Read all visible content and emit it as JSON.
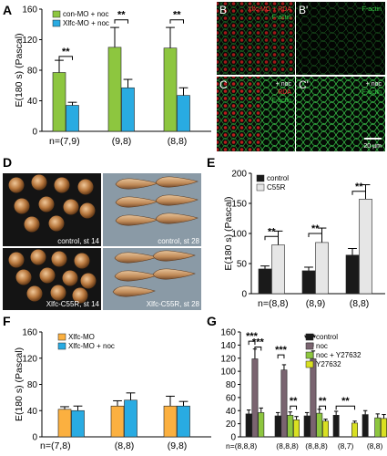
{
  "panel_letters": {
    "A": "A",
    "B": "B",
    "B2": "B'",
    "C": "C",
    "C2": "C'",
    "D": "D",
    "E": "E",
    "F": "F",
    "G": "G"
  },
  "micrographs": {
    "B": [
      "Xlfc-MO + RDA",
      "F-actin"
    ],
    "B2": [
      "F-actin"
    ],
    "C": [
      "+ noc",
      "RDA",
      "F-actin"
    ],
    "C2": [
      "+ noc",
      "F-actin"
    ],
    "scale_bar": "20 µm"
  },
  "photos": {
    "tl": "control, st 14",
    "tr": "control, st 28",
    "bl": "Xlfc-C55R, st 14",
    "br": "Xlfc-C55R, st 28"
  },
  "colors": {
    "green": "#8dc63f",
    "blue": "#29abe2",
    "black": "#1a1a1a",
    "light_gray": "#e6e6e6",
    "orange": "#fbb040",
    "plum": "#7a6470",
    "lime": "#d9e021"
  },
  "chart_data": [
    {
      "id": "A",
      "type": "bar",
      "ylabel": "E(180 s) (Pascal)",
      "ylim": [
        0,
        160
      ],
      "yticks": [
        0,
        40,
        80,
        120,
        160
      ],
      "categories": [
        "n=(7,9)",
        "(9,8)",
        "(8,8)"
      ],
      "legend_position": "top-left",
      "series": [
        {
          "name": "con-MO + noc",
          "color": "green",
          "values": [
            77,
            110,
            109
          ],
          "errors": [
            16,
            26,
            27
          ]
        },
        {
          "name": "Xlfc-MO + noc",
          "color": "blue",
          "values": [
            34,
            57,
            47
          ],
          "errors": [
            4,
            11,
            10
          ]
        }
      ],
      "significance": [
        {
          "group": 0,
          "pair": [
            0,
            1
          ],
          "label": "**",
          "y": 98
        },
        {
          "group": 1,
          "pair": [
            0,
            1
          ],
          "label": "**",
          "y": 146
        },
        {
          "group": 2,
          "pair": [
            0,
            1
          ],
          "label": "**",
          "y": 146
        }
      ]
    },
    {
      "id": "E",
      "type": "bar",
      "ylabel": "E(180 s) (Pascal)",
      "ylim": [
        0,
        200
      ],
      "yticks": [
        0,
        50,
        100,
        150,
        200
      ],
      "categories": [
        "n=(8,8)",
        "(8,9)",
        "(8,8)"
      ],
      "legend_position": "top-left",
      "series": [
        {
          "name": "control",
          "color": "black",
          "values": [
            41,
            38,
            64
          ],
          "errors": [
            5,
            6,
            11
          ]
        },
        {
          "name": "C55R",
          "color": "light_gray",
          "values": [
            81,
            85,
            157
          ],
          "errors": [
            23,
            24,
            24
          ]
        }
      ],
      "significance": [
        {
          "group": 0,
          "pair": [
            0,
            1
          ],
          "label": "**",
          "y": 95
        },
        {
          "group": 1,
          "pair": [
            0,
            1
          ],
          "label": "**",
          "y": 100
        },
        {
          "group": 2,
          "pair": [
            0,
            1
          ],
          "label": "**",
          "y": 170
        }
      ]
    },
    {
      "id": "F",
      "type": "bar",
      "ylabel": "E(180 s) (Pascal)",
      "ylim": [
        0,
        160
      ],
      "yticks": [
        0,
        40,
        80,
        120,
        160
      ],
      "categories": [
        "n=(7,8)",
        "(8,8)",
        "(9,8)"
      ],
      "legend_position": "top-left",
      "series": [
        {
          "name": "Xlfc-MO",
          "color": "orange",
          "values": [
            42,
            47,
            47
          ],
          "errors": [
            4,
            8,
            15
          ]
        },
        {
          "name": "Xlfc-MO + noc",
          "color": "blue",
          "values": [
            40,
            56,
            47
          ],
          "errors": [
            7,
            11,
            7
          ]
        }
      ],
      "significance": []
    },
    {
      "id": "G",
      "type": "bar",
      "ylim": [
        0,
        160
      ],
      "yticks": [
        0,
        20,
        40,
        60,
        80,
        100,
        120,
        140,
        160
      ],
      "categories": [
        "n=(8,8,8)",
        "(8,8,8)",
        "(8,8,8)",
        "(8,7)",
        "(8,8)"
      ],
      "legend_position": "top-right",
      "series": [
        {
          "name": "control",
          "color": "black",
          "values": [
            35,
            32,
            32,
            33,
            34
          ],
          "errors": [
            6,
            5,
            5,
            6,
            6
          ]
        },
        {
          "name": "noc",
          "color": "plum",
          "values": [
            119,
            102,
            119,
            null,
            null
          ],
          "errors": [
            15,
            8,
            12,
            null,
            null
          ]
        },
        {
          "name": "noc + Y27632",
          "color": "green",
          "values": [
            37,
            33,
            36,
            null,
            29
          ],
          "errors": [
            7,
            5,
            6,
            null,
            6
          ]
        },
        {
          "name": "Y27632",
          "color": "lime",
          "values": [
            null,
            26,
            24,
            21,
            28
          ],
          "errors": [
            null,
            5,
            3,
            3,
            6
          ]
        }
      ],
      "significance": [
        {
          "group": 0,
          "pair": [
            0,
            1
          ],
          "label": "***",
          "y": 146
        },
        {
          "group": 0,
          "pair": [
            1,
            2
          ],
          "label": "***",
          "y": 137
        },
        {
          "group": 1,
          "pair": [
            0,
            1
          ],
          "label": "***",
          "y": 125
        },
        {
          "group": 1,
          "pair": [
            2,
            3
          ],
          "label": "**",
          "y": 47
        },
        {
          "group": 2,
          "pair": [
            0,
            1
          ],
          "label": "***",
          "y": 143
        },
        {
          "group": 2,
          "pair": [
            2,
            3
          ],
          "label": "**",
          "y": 47
        },
        {
          "group": 3,
          "pair": [
            0,
            3
          ],
          "label": "**",
          "y": 47
        }
      ]
    }
  ]
}
